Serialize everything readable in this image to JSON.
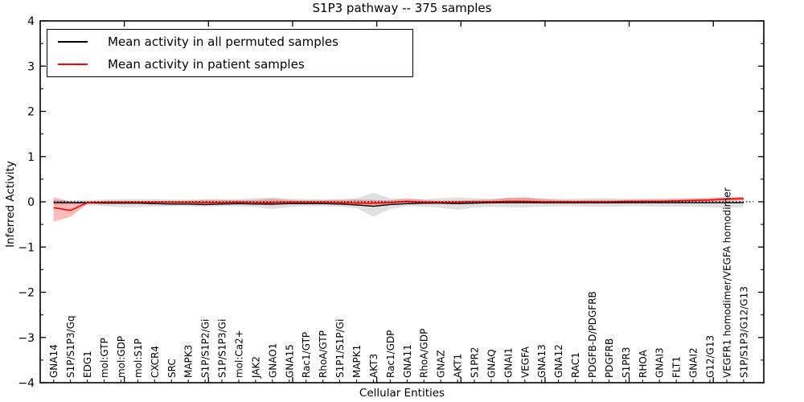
{
  "chart_data": {
    "type": "line",
    "title": "S1P3 pathway -- 375 samples",
    "xlabel": "Cellular Entities",
    "ylabel": "Inferred Activity",
    "ylim": [
      -4,
      4
    ],
    "ytick_labels": [
      "4",
      "3",
      "2",
      "1",
      "0",
      "−1",
      "−2",
      "−3",
      "−4"
    ],
    "ytick_values": [
      4,
      3,
      2,
      1,
      0,
      -1,
      -2,
      -3,
      -4
    ],
    "grid": false,
    "legend_position": "upper left",
    "x_axis": {
      "xlim": [
        0,
        43
      ],
      "major_ticks": [
        5,
        10,
        15,
        20,
        25,
        30,
        35,
        40
      ],
      "point_offset": 0.8
    },
    "categories": [
      "GNA14",
      "S1P/S1P3/Gq",
      "EDG1",
      "mol:GTP",
      "mol:GDP",
      "mol:S1P",
      "CXCR4",
      "SRC",
      "MAPK3",
      "S1P/S1P2/Gi",
      "S1P/S1P3/Gi",
      "mol:Ca2+",
      "JAK2",
      "GNAO1",
      "GNA15",
      "Rac1/GTP",
      "RhoA/GTP",
      "S1P1/S1P/Gi",
      "MAPK1",
      "AKT3",
      "Rac1/GDP",
      "GNA11",
      "RhoA/GDP",
      "GNAZ",
      "AKT1",
      "S1PR2",
      "GNAQ",
      "GNAI1",
      "VEGFA",
      "GNA13",
      "GNA12",
      "RAC1",
      "PDGFB-D/PDGFRB",
      "PDGFRB",
      "S1PR3",
      "RHOA",
      "GNAI3",
      "FLT1",
      "GNAI2",
      "G12/G13",
      "VEGFR1 homodimer/VEGFA homodimer",
      "S1P/S1P3/G12/G13"
    ],
    "series": [
      {
        "name": "Mean activity in all permuted samples",
        "color": "#000000",
        "band_color": "rgba(0,0,0,0.12)",
        "values": [
          -0.02,
          -0.02,
          -0.02,
          -0.03,
          -0.03,
          -0.03,
          -0.04,
          -0.05,
          -0.05,
          -0.06,
          -0.05,
          -0.04,
          -0.05,
          -0.05,
          -0.04,
          -0.04,
          -0.04,
          -0.05,
          -0.07,
          -0.1,
          -0.06,
          -0.04,
          -0.03,
          -0.03,
          -0.04,
          -0.03,
          -0.02,
          -0.02,
          -0.02,
          -0.02,
          -0.02,
          -0.02,
          -0.02,
          -0.02,
          -0.02,
          -0.02,
          -0.02,
          -0.02,
          -0.02,
          -0.02,
          -0.02,
          -0.02
        ],
        "band_upper": [
          0.04,
          0.03,
          0.03,
          0.05,
          0.06,
          0.06,
          0.06,
          0.05,
          0.05,
          0.06,
          0.06,
          0.06,
          0.08,
          0.1,
          0.07,
          0.06,
          0.06,
          0.06,
          0.08,
          0.2,
          0.08,
          0.05,
          0.06,
          0.08,
          0.1,
          0.08,
          0.07,
          0.08,
          0.09,
          0.08,
          0.07,
          0.07,
          0.08,
          0.08,
          0.07,
          0.07,
          0.08,
          0.08,
          0.08,
          0.09,
          0.1,
          0.1
        ],
        "band_lower": [
          -0.08,
          -0.06,
          -0.07,
          -0.1,
          -0.12,
          -0.12,
          -0.11,
          -0.1,
          -0.1,
          -0.11,
          -0.1,
          -0.1,
          -0.12,
          -0.16,
          -0.12,
          -0.1,
          -0.1,
          -0.11,
          -0.14,
          -0.33,
          -0.16,
          -0.1,
          -0.11,
          -0.13,
          -0.18,
          -0.13,
          -0.11,
          -0.12,
          -0.12,
          -0.11,
          -0.1,
          -0.1,
          -0.11,
          -0.11,
          -0.1,
          -0.1,
          -0.11,
          -0.11,
          -0.11,
          -0.12,
          -0.13,
          -0.12
        ]
      },
      {
        "name": "Mean activity in patient samples",
        "color": "#ff0000",
        "band_color": "rgba(255,0,0,0.27)",
        "values": [
          -0.13,
          -0.19,
          -0.02,
          -0.01,
          -0.01,
          -0.01,
          -0.01,
          -0.01,
          -0.01,
          -0.02,
          -0.02,
          -0.01,
          -0.02,
          -0.02,
          -0.01,
          -0.01,
          -0.01,
          -0.02,
          -0.03,
          -0.03,
          -0.02,
          0.01,
          -0.01,
          -0.01,
          -0.01,
          0.0,
          0.0,
          0.01,
          0.01,
          0.0,
          0.0,
          0.0,
          0.0,
          0.0,
          0.01,
          0.01,
          0.01,
          0.02,
          0.03,
          0.04,
          0.06,
          0.07
        ],
        "band_upper": [
          0.1,
          0.0,
          0.0,
          0.02,
          0.02,
          0.02,
          0.02,
          0.02,
          0.02,
          0.04,
          0.04,
          0.03,
          0.04,
          0.07,
          0.04,
          0.03,
          0.03,
          0.04,
          0.05,
          0.04,
          0.03,
          0.08,
          0.04,
          0.02,
          0.03,
          0.04,
          0.05,
          0.09,
          0.1,
          0.06,
          0.04,
          0.03,
          0.04,
          0.04,
          0.04,
          0.05,
          0.05,
          0.06,
          0.07,
          0.08,
          0.1,
          0.11
        ],
        "band_lower": [
          -0.44,
          -0.33,
          -0.05,
          -0.04,
          -0.04,
          -0.04,
          -0.04,
          -0.04,
          -0.04,
          -0.06,
          -0.06,
          -0.05,
          -0.06,
          -0.08,
          -0.05,
          -0.04,
          -0.04,
          -0.05,
          -0.08,
          -0.08,
          -0.06,
          -0.04,
          -0.05,
          -0.04,
          -0.05,
          -0.04,
          -0.04,
          -0.03,
          -0.03,
          -0.04,
          -0.04,
          -0.04,
          -0.04,
          -0.04,
          -0.03,
          -0.03,
          -0.02,
          -0.01,
          0.0,
          0.01,
          0.02,
          0.03
        ]
      }
    ],
    "zero_line": {
      "value": 0,
      "style": "dotted",
      "color": "#000000"
    }
  }
}
